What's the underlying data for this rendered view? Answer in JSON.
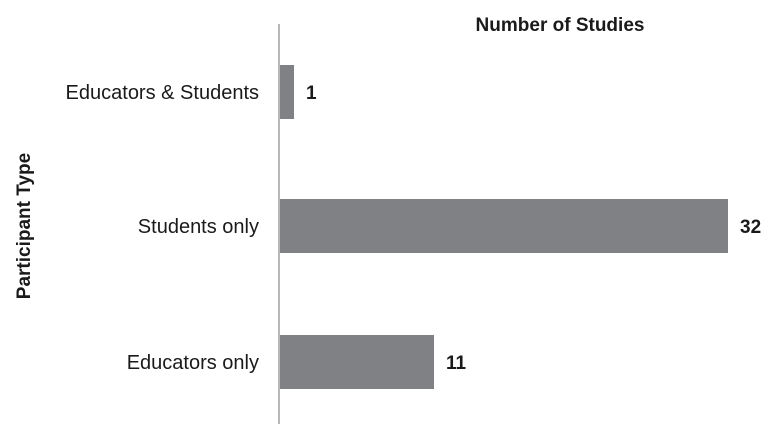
{
  "chart_data": {
    "type": "bar",
    "orientation": "horizontal",
    "title": "Number of Studies",
    "ylabel": "Participant Type",
    "xlabel": "",
    "categories": [
      "Educators & Students",
      "Students only",
      "Educators only"
    ],
    "values": [
      1,
      32,
      11
    ],
    "xlim": [
      0,
      32
    ],
    "grid": false,
    "legend": "none",
    "bar_color": "#808184",
    "axis_color": "#a0a0a0"
  }
}
